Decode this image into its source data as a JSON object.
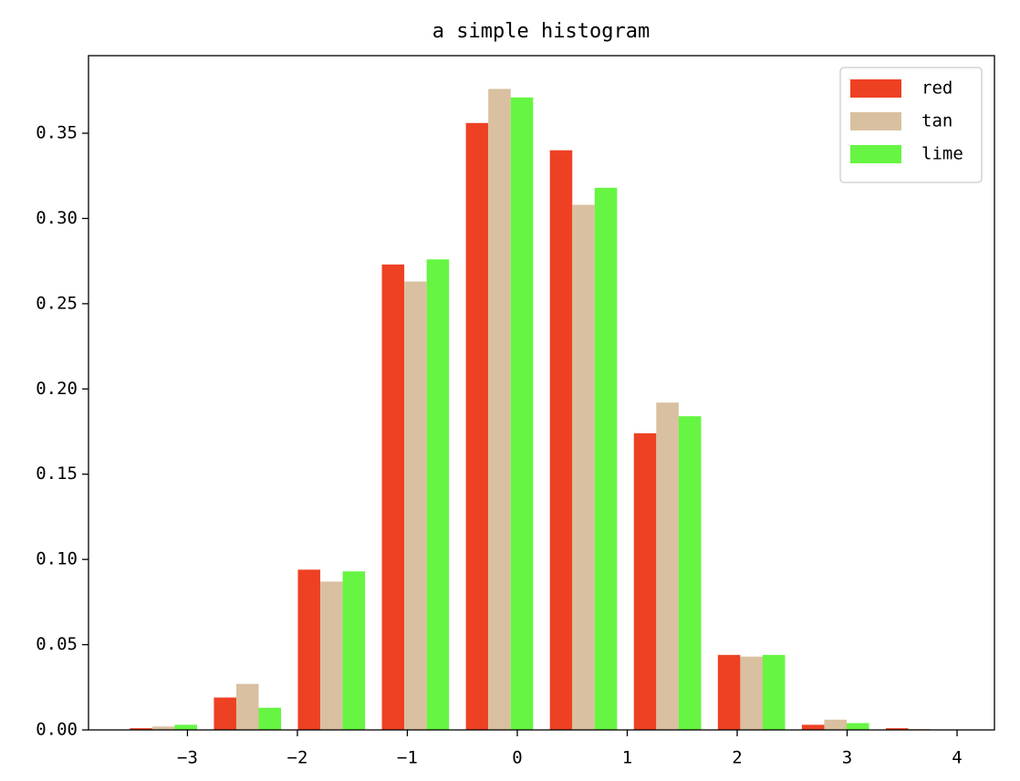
{
  "chart_data": {
    "type": "histogram",
    "title": "a simple histogram",
    "bins": [
      -3.6,
      -2.836,
      -2.072,
      -1.308,
      -0.544,
      0.22,
      0.984,
      1.748,
      2.512,
      3.276,
      4.04
    ],
    "series": [
      {
        "name": "red",
        "color": "#ee4124",
        "values": [
          0.001,
          0.019,
          0.094,
          0.273,
          0.356,
          0.34,
          0.174,
          0.044,
          0.003,
          0.001
        ]
      },
      {
        "name": "tan",
        "color": "#d9c0a0",
        "values": [
          0.002,
          0.027,
          0.087,
          0.263,
          0.376,
          0.308,
          0.192,
          0.043,
          0.006,
          0.0005
        ]
      },
      {
        "name": "lime",
        "color": "#66f542",
        "values": [
          0.003,
          0.013,
          0.093,
          0.276,
          0.371,
          0.318,
          0.184,
          0.044,
          0.004,
          0
        ]
      }
    ],
    "xlim": [
      -3.9,
      4.34
    ],
    "ylim": [
      0,
      0.3955
    ],
    "xticks": [
      {
        "value": -3,
        "label": "−3"
      },
      {
        "value": -2,
        "label": "−2"
      },
      {
        "value": -1,
        "label": "−1"
      },
      0,
      1,
      2,
      3,
      4
    ],
    "yticks": [
      {
        "value": 0,
        "label": "0.00"
      },
      {
        "value": 0.05,
        "label": "0.05"
      },
      {
        "value": 0.1,
        "label": "0.10"
      },
      {
        "value": 0.15,
        "label": "0.15"
      },
      {
        "value": 0.2,
        "label": "0.20"
      },
      {
        "value": 0.25,
        "label": "0.25"
      },
      {
        "value": 0.3,
        "label": "0.30"
      },
      {
        "value": 0.35,
        "label": "0.35"
      }
    ],
    "legend": "upper right",
    "grid": false
  }
}
